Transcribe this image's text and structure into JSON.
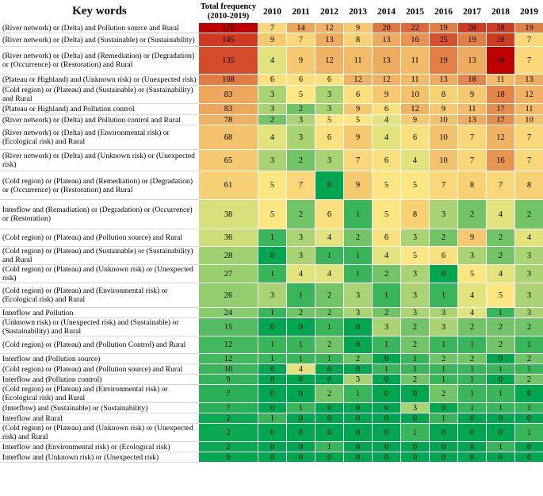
{
  "chart_data": {
    "type": "heatmap",
    "header": {
      "keywords": "Key words",
      "total_line1": "Total frequency",
      "total_line2": "(2010-2019)",
      "years": [
        "2010",
        "2011",
        "2012",
        "2013",
        "2014",
        "2015",
        "2016",
        "2017",
        "2018",
        "2019"
      ]
    },
    "colormap": {
      "low": "#00a650",
      "mid": "#ffeb84",
      "high": "#c00000"
    },
    "rows": [
      {
        "keywords": "(River network) or (Delta) and Pollution source and Rural",
        "total": 178,
        "values": [
          7,
          14,
          12,
          9,
          20,
          22,
          19,
          28,
          28,
          19
        ]
      },
      {
        "keywords": "(River network) or (Delta) and (Sustainable) or (Sustainability)",
        "total": 145,
        "values": [
          9,
          7,
          13,
          8,
          13,
          16,
          25,
          19,
          28,
          7
        ]
      },
      {
        "keywords": "(River network) or (Delta) and (Remediation) or (Degradation) or (Occurrence) or (Restoration) and Rural",
        "total": 135,
        "values": [
          4,
          9,
          12,
          11,
          13,
          11,
          19,
          13,
          36,
          7
        ]
      },
      {
        "keywords": "(Plateau or Highland) and (Unknown risk) or (Unexpected risk)",
        "total": 108,
        "values": [
          6,
          6,
          6,
          12,
          12,
          11,
          13,
          18,
          11,
          13
        ]
      },
      {
        "keywords": "(Cold region) or (Plateau) and (Sustainable) or (Sustainability) and Rural",
        "total": 83,
        "values": [
          3,
          5,
          3,
          6,
          9,
          10,
          8,
          9,
          18,
          12
        ]
      },
      {
        "keywords": "(Plateau or Highland) and Pollution control",
        "total": 83,
        "values": [
          3,
          2,
          3,
          9,
          6,
          12,
          9,
          11,
          17,
          11
        ]
      },
      {
        "keywords": "(River network) or (Delta) and Pollution control and Rural",
        "total": 78,
        "values": [
          2,
          3,
          5,
          5,
          4,
          9,
          10,
          13,
          17,
          10
        ]
      },
      {
        "keywords": "(River network) or (Delta) and (Environmental risk) or (Ecological risk) and Rural",
        "total": 68,
        "values": [
          4,
          3,
          6,
          9,
          4,
          6,
          10,
          7,
          12,
          7
        ]
      },
      {
        "keywords": "(River network) or (Delta) and (Unknown risk) or (Unexpected risk)",
        "total": 65,
        "values": [
          3,
          2,
          3,
          7,
          6,
          4,
          10,
          7,
          16,
          7
        ]
      },
      {
        "keywords": "(Cold region) or (Plateau) and (Remediation) or (Degradation) or (Occurrence) or (Restoration) and Rural",
        "total": 61,
        "values": [
          5,
          7,
          0,
          9,
          5,
          5,
          7,
          8,
          7,
          8
        ]
      },
      {
        "keywords": "Interflow and (Remadiation) or (Degradation) or (Occurrence) or (Restoration)",
        "total": 38,
        "values": [
          5,
          2,
          6,
          1,
          5,
          8,
          3,
          2,
          4,
          2
        ]
      },
      {
        "keywords": "(Cold region) or (Plateau) and (Pollution source) and Rural",
        "total": 36,
        "values": [
          1,
          3,
          4,
          2,
          6,
          3,
          2,
          9,
          2,
          4
        ]
      },
      {
        "keywords": "(Cold region) or (Plateau) and (Sustainable) or (Sustainability) and Rural",
        "total": 28,
        "values": [
          0,
          3,
          1,
          1,
          4,
          5,
          6,
          3,
          2,
          3
        ]
      },
      {
        "keywords": "(Cold region) or (Plateau) and (Unknown risk) or (Unexpected risk)",
        "total": 27,
        "values": [
          1,
          4,
          4,
          1,
          2,
          3,
          0,
          5,
          4,
          3
        ]
      },
      {
        "keywords": "(Cold region) or (Plateau) and (Environmental risk) or (Ecological risk) and Rural",
        "total": 26,
        "values": [
          3,
          1,
          2,
          3,
          1,
          3,
          1,
          4,
          5,
          3
        ]
      },
      {
        "keywords": "Interflow and Pollution",
        "total": 24,
        "values": [
          1,
          2,
          2,
          3,
          2,
          3,
          3,
          4,
          1,
          3
        ]
      },
      {
        "keywords": "(Unknown risk) or (Unexpected risk) and (Sustainable) or (Sustainability) and Rural",
        "total": 15,
        "values": [
          0,
          0,
          1,
          0,
          3,
          2,
          3,
          2,
          2,
          2
        ]
      },
      {
        "keywords": "(Cold region) or (Plateau) and (Pollution Control) and Rural",
        "total": 12,
        "values": [
          1,
          1,
          2,
          0,
          1,
          2,
          1,
          1,
          2,
          1
        ]
      },
      {
        "keywords": "Interflow and (Pollution source)",
        "total": 12,
        "values": [
          1,
          1,
          1,
          2,
          0,
          1,
          2,
          2,
          0,
          2
        ]
      },
      {
        "keywords": "(Cold region) or (Plateau) and (Pollution source) and Rural",
        "total": 10,
        "values": [
          0,
          4,
          0,
          0,
          1,
          1,
          1,
          1,
          1,
          1
        ]
      },
      {
        "keywords": "Interflow and (Pollution control)",
        "total": 9,
        "values": [
          0,
          0,
          0,
          3,
          0,
          2,
          1,
          1,
          0,
          2
        ]
      },
      {
        "keywords": "(Cold region) or (Plateau) and (Environmental risk) or (Ecological risk) and Rural",
        "total": 7,
        "values": [
          0,
          0,
          2,
          1,
          0,
          0,
          2,
          1,
          1,
          0
        ]
      },
      {
        "keywords": "(Interflow) and (Sustainable) or (Sustainability)",
        "total": 7,
        "values": [
          0,
          1,
          0,
          0,
          0,
          3,
          0,
          1,
          1,
          1
        ]
      },
      {
        "keywords": "Interflow and Rural",
        "total": 2,
        "values": [
          1,
          0,
          0,
          0,
          0,
          0,
          1,
          0,
          0,
          0
        ]
      },
      {
        "keywords": "(Cold region) or (Plateau) and (Unknown risk) or (Unexpected risk) and Rural",
        "total": 2,
        "values": [
          0,
          0,
          0,
          0,
          0,
          1,
          0,
          0,
          0,
          1
        ]
      },
      {
        "keywords": "Interflow and (Environmental risk) or (Ecological risk)",
        "total": 2,
        "values": [
          0,
          0,
          1,
          0,
          0,
          0,
          0,
          0,
          1,
          0
        ]
      },
      {
        "keywords": "Interflow and (Unknown risk) or (Unexpected risk)",
        "total": 0,
        "values": [
          0,
          0,
          0,
          0,
          0,
          0,
          0,
          0,
          0,
          0
        ]
      }
    ]
  }
}
